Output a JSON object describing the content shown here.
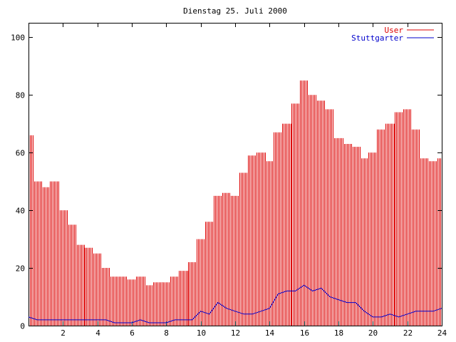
{
  "chart_data": {
    "type": "bar",
    "title": "Dienstag 25. Juli 2000",
    "xlim": [
      0,
      24
    ],
    "ylim": [
      0,
      105
    ],
    "x_ticks": [
      2,
      4,
      6,
      8,
      10,
      12,
      14,
      16,
      18,
      20,
      22,
      24
    ],
    "y_ticks": [
      0,
      20,
      40,
      60,
      80,
      100
    ],
    "legend_position": "top-right",
    "grid": false,
    "colors": {
      "User": "#dd0000",
      "Stuttgarter": "#0000cc"
    },
    "series": [
      {
        "name": "User",
        "style": "impulses",
        "x": [
          0.0,
          0.5,
          1.0,
          1.5,
          2.0,
          2.5,
          3.0,
          3.5,
          4.0,
          4.5,
          5.0,
          5.5,
          6.0,
          6.5,
          7.0,
          7.5,
          8.0,
          8.5,
          9.0,
          9.5,
          10.0,
          10.5,
          11.0,
          11.5,
          12.0,
          12.5,
          13.0,
          13.5,
          14.0,
          14.5,
          15.0,
          15.5,
          16.0,
          16.5,
          17.0,
          17.5,
          18.0,
          18.5,
          19.0,
          19.5,
          20.0,
          20.5,
          21.0,
          21.5,
          22.0,
          22.5,
          23.0,
          23.5,
          24.0
        ],
        "y": [
          66,
          50,
          48,
          50,
          40,
          35,
          28,
          27,
          25,
          20,
          17,
          17,
          16,
          17,
          14,
          15,
          15,
          17,
          19,
          22,
          30,
          36,
          45,
          46,
          45,
          53,
          59,
          60,
          57,
          67,
          70,
          77,
          85,
          80,
          78,
          75,
          65,
          63,
          62,
          58,
          60,
          68,
          70,
          74,
          75,
          68,
          58,
          57,
          58
        ]
      },
      {
        "name": "Stuttgarter",
        "style": "lines",
        "x": [
          0.0,
          0.5,
          1.0,
          1.5,
          2.0,
          2.5,
          3.0,
          3.5,
          4.0,
          4.5,
          5.0,
          5.5,
          6.0,
          6.5,
          7.0,
          7.5,
          8.0,
          8.5,
          9.0,
          9.5,
          10.0,
          10.5,
          11.0,
          11.5,
          12.0,
          12.5,
          13.0,
          13.5,
          14.0,
          14.5,
          15.0,
          15.5,
          16.0,
          16.5,
          17.0,
          17.5,
          18.0,
          18.5,
          19.0,
          19.5,
          20.0,
          20.5,
          21.0,
          21.5,
          22.0,
          22.5,
          23.0,
          23.5,
          24.0
        ],
        "y": [
          3,
          2,
          2,
          2,
          2,
          2,
          2,
          2,
          2,
          2,
          1,
          1,
          1,
          2,
          1,
          1,
          1,
          2,
          2,
          2,
          5,
          4,
          8,
          6,
          5,
          4,
          4,
          5,
          6,
          11,
          12,
          12,
          14,
          12,
          13,
          10,
          9,
          8,
          8,
          5,
          3,
          3,
          4,
          3,
          4,
          5,
          5,
          5,
          6
        ]
      }
    ]
  }
}
